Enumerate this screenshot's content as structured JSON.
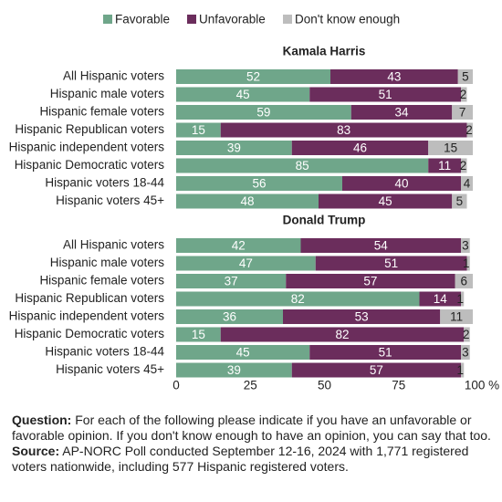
{
  "chart_data": [
    {
      "type": "bar",
      "orientation": "horizontal",
      "stacked": true,
      "title": "Kamala Harris",
      "categories": [
        "All Hispanic voters",
        "Hispanic male voters",
        "Hispanic female voters",
        "Hispanic Republican voters",
        "Hispanic independent voters",
        "Hispanic Democratic voters",
        "Hispanic voters 18-44",
        "Hispanic voters 45+"
      ],
      "series": [
        {
          "name": "Favorable",
          "color": "#6fa68a",
          "values": [
            52,
            45,
            59,
            15,
            39,
            85,
            56,
            48
          ]
        },
        {
          "name": "Unfavorable",
          "color": "#6b2d5c",
          "values": [
            43,
            51,
            34,
            83,
            46,
            11,
            40,
            45
          ]
        },
        {
          "name": "Don't know enough",
          "color": "#bdbdbd",
          "values": [
            5,
            2,
            7,
            2,
            15,
            2,
            4,
            5
          ]
        }
      ],
      "xlim": [
        0,
        100
      ]
    },
    {
      "type": "bar",
      "orientation": "horizontal",
      "stacked": true,
      "title": "Donald Trump",
      "categories": [
        "All Hispanic voters",
        "Hispanic male voters",
        "Hispanic female voters",
        "Hispanic Republican voters",
        "Hispanic independent voters",
        "Hispanic Democratic voters",
        "Hispanic voters 18-44",
        "Hispanic voters 45+"
      ],
      "series": [
        {
          "values": [
            42,
            47,
            37,
            82,
            36,
            15,
            45,
            39
          ]
        },
        {
          "values": [
            54,
            51,
            57,
            14,
            53,
            82,
            51,
            57
          ]
        },
        {
          "values": [
            3,
            1,
            6,
            1,
            11,
            2,
            3,
            1
          ]
        }
      ],
      "xlim": [
        0,
        100
      ],
      "xticks": [
        0,
        25,
        50,
        75,
        {
          "value": 100,
          "label": "100 %"
        }
      ]
    }
  ],
  "notes": {
    "question_label": "Question:",
    "question": "For each of the following please indicate if you have an unfavorable or favorable opinion. If you don't know enough to have an opinion, you can say that too.",
    "source_label": "Source:",
    "source": "AP-NORC Poll conducted September 12-16, 2024 with 1,771 registered voters nationwide, including 577 Hispanic registered voters."
  }
}
